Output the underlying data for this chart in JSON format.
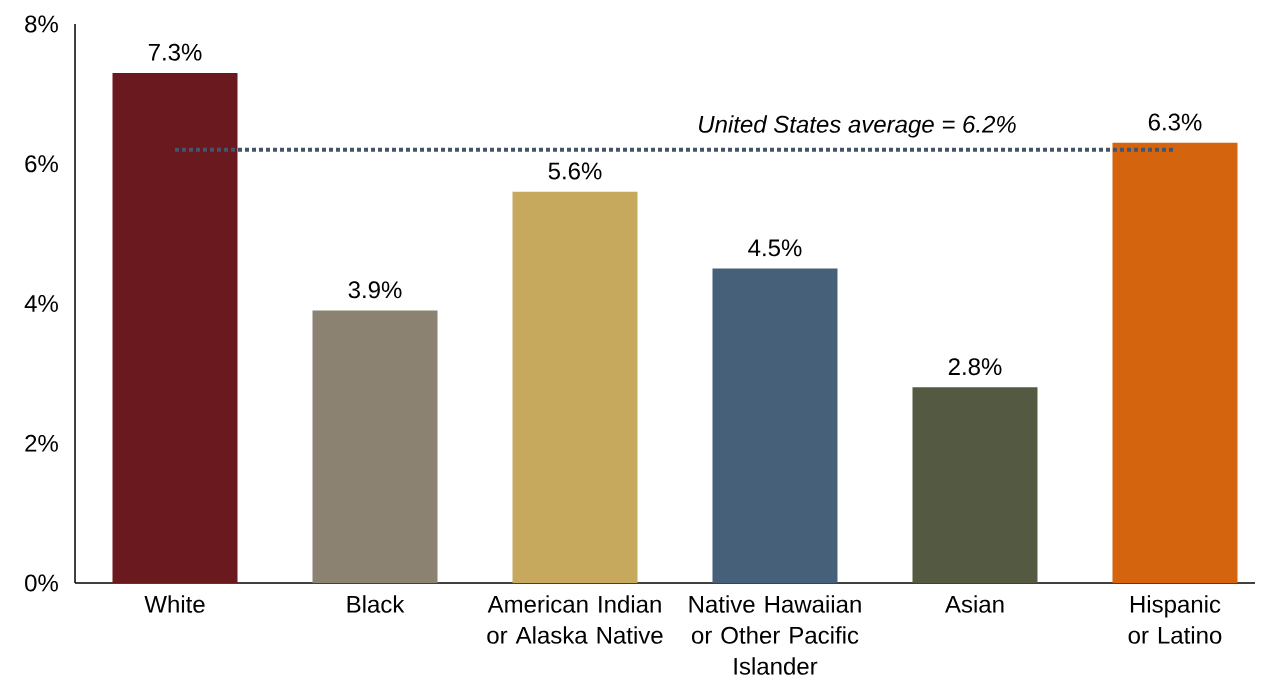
{
  "chart_data": {
    "type": "bar",
    "categories": [
      "White",
      "Black",
      "American Indian or Alaska Native",
      "Native Hawaiian or Other Pacific Islander",
      "Asian",
      "Hispanic or Latino"
    ],
    "values": [
      7.3,
      3.9,
      5.6,
      4.5,
      2.8,
      6.3
    ],
    "value_labels": [
      "7.3%",
      "3.9%",
      "5.6%",
      "4.5%",
      "2.8%",
      "6.3%"
    ],
    "colors": [
      "#6a1a1e",
      "#8b8272",
      "#c6a95c",
      "#46607a",
      "#545a41",
      "#d4640d"
    ],
    "ylim": [
      0,
      8
    ],
    "yticks": [
      {
        "value": 0,
        "label": "0%"
      },
      {
        "value": 2,
        "label": "2%"
      },
      {
        "value": 4,
        "label": "4%"
      },
      {
        "value": 6,
        "label": "6%"
      },
      {
        "value": 8,
        "label": "8%"
      }
    ],
    "ref_lines": [
      {
        "axis": "y",
        "value": 6.2,
        "label": "United States average = 6.2%",
        "color": "#44546a",
        "line_style": "dotted"
      }
    ],
    "grid": false
  }
}
